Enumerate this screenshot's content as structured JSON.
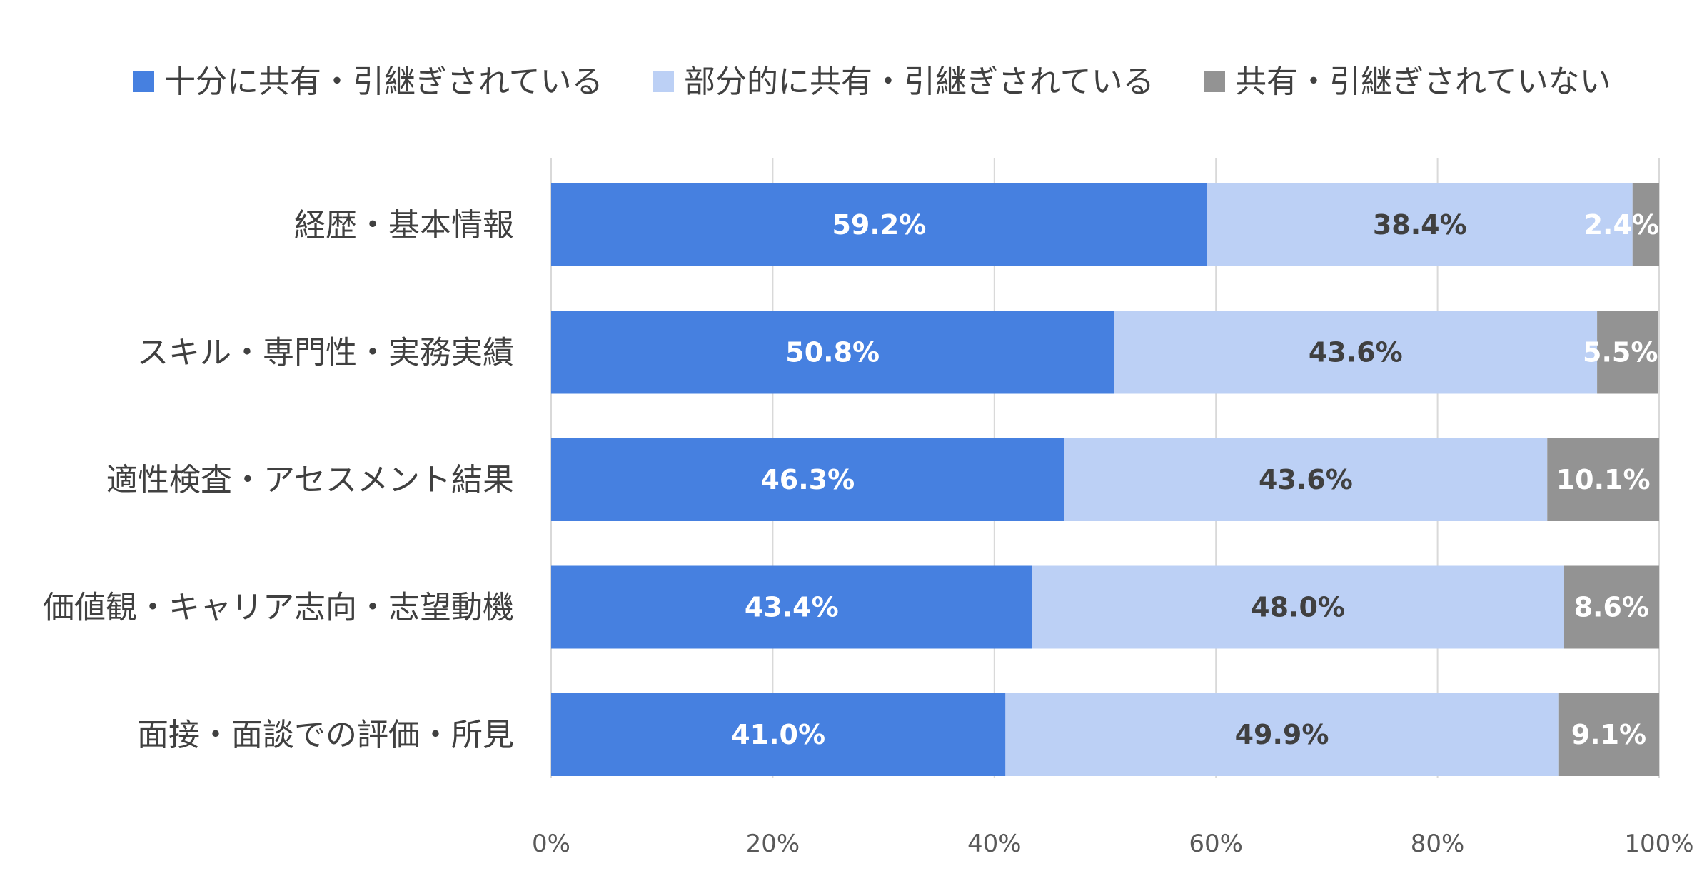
{
  "chart_data": {
    "type": "bar",
    "orientation": "horizontal",
    "stacked": true,
    "title": "",
    "xlabel": "",
    "ylabel": "",
    "xlim": [
      0,
      100
    ],
    "x_ticks": [
      "0%",
      "20%",
      "40%",
      "60%",
      "80%",
      "100%"
    ],
    "grid": true,
    "legend_position": "top",
    "categories": [
      "経歴・基本情報",
      "スキル・専門性・実務実績",
      "適性検査・アセスメント結果",
      "価値観・キャリア志向・志望動機",
      "面接・面談での評価・所見"
    ],
    "series": [
      {
        "name": "十分に共有・引継ぎされている",
        "color": "#4680E0",
        "label_color": "#FFFFFF",
        "values": [
          59.2,
          50.8,
          46.3,
          43.4,
          41.0
        ],
        "labels": [
          "59.2%",
          "50.8%",
          "46.3%",
          "43.4%",
          "41.0%"
        ]
      },
      {
        "name": "部分的に共有・引継ぎされている",
        "color": "#BCD0F5",
        "label_color": "#404040",
        "values": [
          38.4,
          43.6,
          43.6,
          48.0,
          49.9
        ],
        "labels": [
          "38.4%",
          "43.6%",
          "43.6%",
          "48.0%",
          "49.9%"
        ]
      },
      {
        "name": "共有・引継ぎされていない",
        "color": "#939393",
        "label_color": "#FFFFFF",
        "values": [
          2.4,
          5.5,
          10.1,
          8.6,
          9.1
        ],
        "labels": [
          "2.4%",
          "5.5%",
          "10.1%",
          "8.6%",
          "9.1%"
        ]
      }
    ]
  }
}
